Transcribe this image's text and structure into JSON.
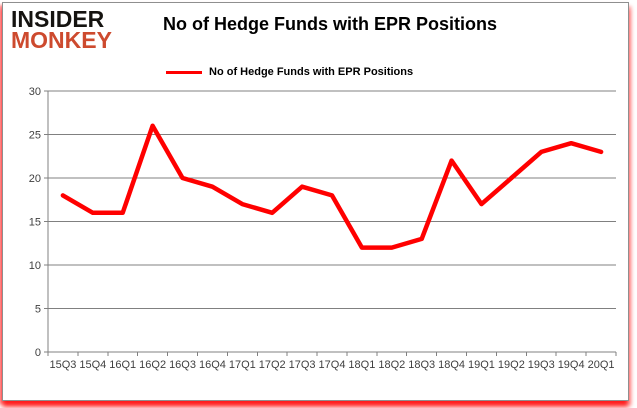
{
  "logo": {
    "line1": "INSIDER",
    "line2": "MONKEY"
  },
  "header": {
    "title": "No of Hedge Funds with EPR Positions"
  },
  "legend": {
    "label": "No of Hedge Funds with EPR Positions"
  },
  "colors": {
    "series_line": "#ff0000",
    "logo_black": "#151310",
    "logo_red": "#cd4a2e",
    "gridline": "#808080",
    "axis_line": "#808080",
    "tick_label": "#3f3f3f",
    "frame_border": "#8f8f8f",
    "frame_glow": "#ff0000",
    "background": "#ffffff"
  },
  "chart_data": {
    "type": "line",
    "title": "No of Hedge Funds with EPR Positions",
    "categories": [
      "15Q3",
      "15Q4",
      "16Q1",
      "16Q2",
      "16Q3",
      "16Q4",
      "17Q1",
      "17Q2",
      "17Q3",
      "17Q4",
      "18Q1",
      "18Q2",
      "18Q3",
      "18Q4",
      "19Q1",
      "19Q2",
      "19Q3",
      "19Q4",
      "20Q1"
    ],
    "series": [
      {
        "name": "No of Hedge Funds with EPR Positions",
        "values": [
          18,
          16,
          16,
          26,
          20,
          19,
          17,
          16,
          19,
          18,
          12,
          12,
          13,
          22,
          17,
          20,
          23,
          24,
          23
        ]
      }
    ],
    "xlabel": "",
    "ylabel": "",
    "ylim": [
      0,
      30
    ],
    "yticks": [
      0,
      5,
      10,
      15,
      20,
      25,
      30
    ],
    "grid": true,
    "legend_position": "top"
  }
}
